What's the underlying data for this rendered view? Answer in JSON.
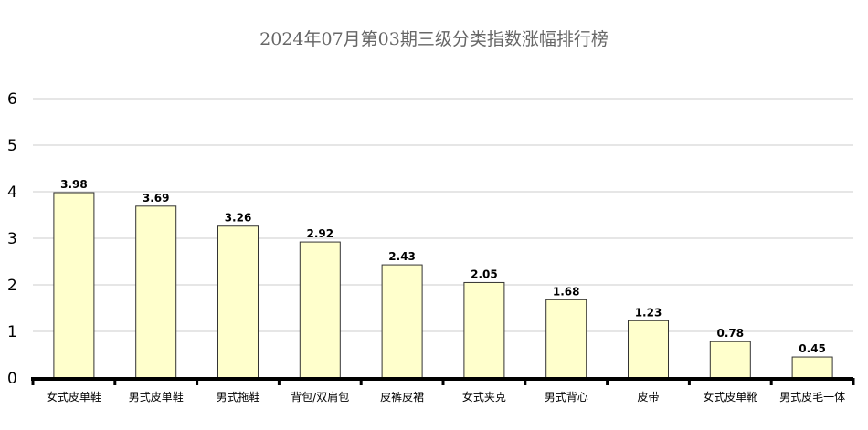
{
  "chart_data": {
    "type": "bar",
    "title": "2024年07月第03期三级分类指数涨幅排行榜",
    "categories": [
      "女式皮单鞋",
      "男式皮单鞋",
      "男式拖鞋",
      "背包/双肩包",
      "皮裤皮裙",
      "女式夹克",
      "男式背心",
      "皮带",
      "女式皮单靴",
      "男式皮毛一体"
    ],
    "values": [
      3.98,
      3.69,
      3.26,
      2.92,
      2.43,
      2.05,
      1.68,
      1.23,
      0.78,
      0.45
    ],
    "data_labels": [
      "3.98",
      "3.69",
      "3.26",
      "2.92",
      "2.43",
      "2.05",
      "1.68",
      "1.23",
      "0.78",
      "0.45"
    ],
    "xlabel": "",
    "ylabel": "",
    "ylim": [
      0,
      6
    ],
    "yticks": [
      "0",
      "1",
      "2",
      "3",
      "4",
      "5",
      "6"
    ],
    "grid": true,
    "bar_color": "#ffffcc",
    "bar_border_color": "#333333",
    "grid_color": "#cccccc",
    "axis_color": "#000000",
    "title_color": "#666666"
  }
}
